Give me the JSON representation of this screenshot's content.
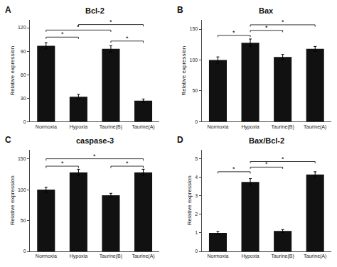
{
  "chart_data": [
    {
      "type": "bar",
      "title": "Bcl-2",
      "annotations": [
        "A"
      ],
      "ylabel": "Relative expression",
      "categories": [
        "Normoxia",
        "Hypoxia",
        "Taurine(B)",
        "Taurine(A)"
      ],
      "values": [
        97,
        32,
        93,
        27
      ],
      "errors": [
        4,
        3,
        4,
        2
      ],
      "color": "#111111",
      "ylim": [
        0,
        130
      ],
      "yticks": [
        0,
        30,
        60,
        90,
        120
      ],
      "grid": false,
      "significance": [
        {
          "from": "Normoxia",
          "to": "Hypoxia",
          "y": 108,
          "label": "*"
        },
        {
          "from": "Normoxia",
          "to": "Taurine(B)",
          "y": 117,
          "label": "*"
        },
        {
          "from": "Taurine(B)",
          "to": "Taurine(A)",
          "y": 103,
          "label": "*"
        },
        {
          "from": "Hypoxia",
          "to": "Taurine(A)",
          "y": 124,
          "label": "*"
        }
      ]
    },
    {
      "type": "bar",
      "title": "Bax",
      "annotations": [
        "B"
      ],
      "ylabel": "Relative expression",
      "categories": [
        "Normoxia",
        "Hypoxia",
        "Taurine(B)",
        "Taurine(A)"
      ],
      "values": [
        100,
        128,
        105,
        118
      ],
      "errors": [
        5,
        6,
        4,
        4
      ],
      "color": "#111111",
      "ylim": [
        0,
        165
      ],
      "yticks": [
        0,
        50,
        100,
        150
      ],
      "grid": false,
      "significance": [
        {
          "from": "Normoxia",
          "to": "Hypoxia",
          "y": 140,
          "label": "*"
        },
        {
          "from": "Hypoxia",
          "to": "Taurine(B)",
          "y": 148,
          "label": "*"
        },
        {
          "from": "Hypoxia",
          "to": "Taurine(A)",
          "y": 157,
          "label": "*"
        }
      ]
    },
    {
      "type": "bar",
      "title": "caspase-3",
      "annotations": [
        "C"
      ],
      "ylabel": "Relative expression",
      "categories": [
        "Normoxia",
        "Hypoxia",
        "Taurine(B)",
        "Taurine(A)"
      ],
      "values": [
        100,
        128,
        91,
        128
      ],
      "errors": [
        4,
        5,
        3,
        5
      ],
      "color": "#111111",
      "ylim": [
        0,
        165
      ],
      "yticks": [
        0,
        50,
        100,
        150
      ],
      "grid": false,
      "significance": [
        {
          "from": "Normoxia",
          "to": "Hypoxia",
          "y": 138,
          "label": "*"
        },
        {
          "from": "Taurine(B)",
          "to": "Taurine(A)",
          "y": 138,
          "label": "*"
        },
        {
          "from": "Normoxia",
          "to": "Taurine(A)",
          "y": 150,
          "label": "*"
        }
      ]
    },
    {
      "type": "bar",
      "title": "Bax/Bcl-2",
      "annotations": [
        "D"
      ],
      "ylabel": "Relative expression",
      "categories": [
        "Normoxia",
        "Hypoxia",
        "Taurine(B)",
        "Taurine(A)"
      ],
      "values": [
        1.0,
        3.75,
        1.1,
        4.15
      ],
      "errors": [
        0.08,
        0.18,
        0.08,
        0.15
      ],
      "color": "#111111",
      "ylim": [
        0,
        5.5
      ],
      "yticks": [
        0,
        1,
        2,
        3,
        4,
        5
      ],
      "grid": false,
      "significance": [
        {
          "from": "Normoxia",
          "to": "Hypoxia",
          "y": 4.3,
          "label": "*"
        },
        {
          "from": "Hypoxia",
          "to": "Taurine(B)",
          "y": 4.55,
          "label": "*"
        },
        {
          "from": "Hypoxia",
          "to": "Taurine(A)",
          "y": 4.85,
          "label": "*"
        }
      ]
    }
  ]
}
